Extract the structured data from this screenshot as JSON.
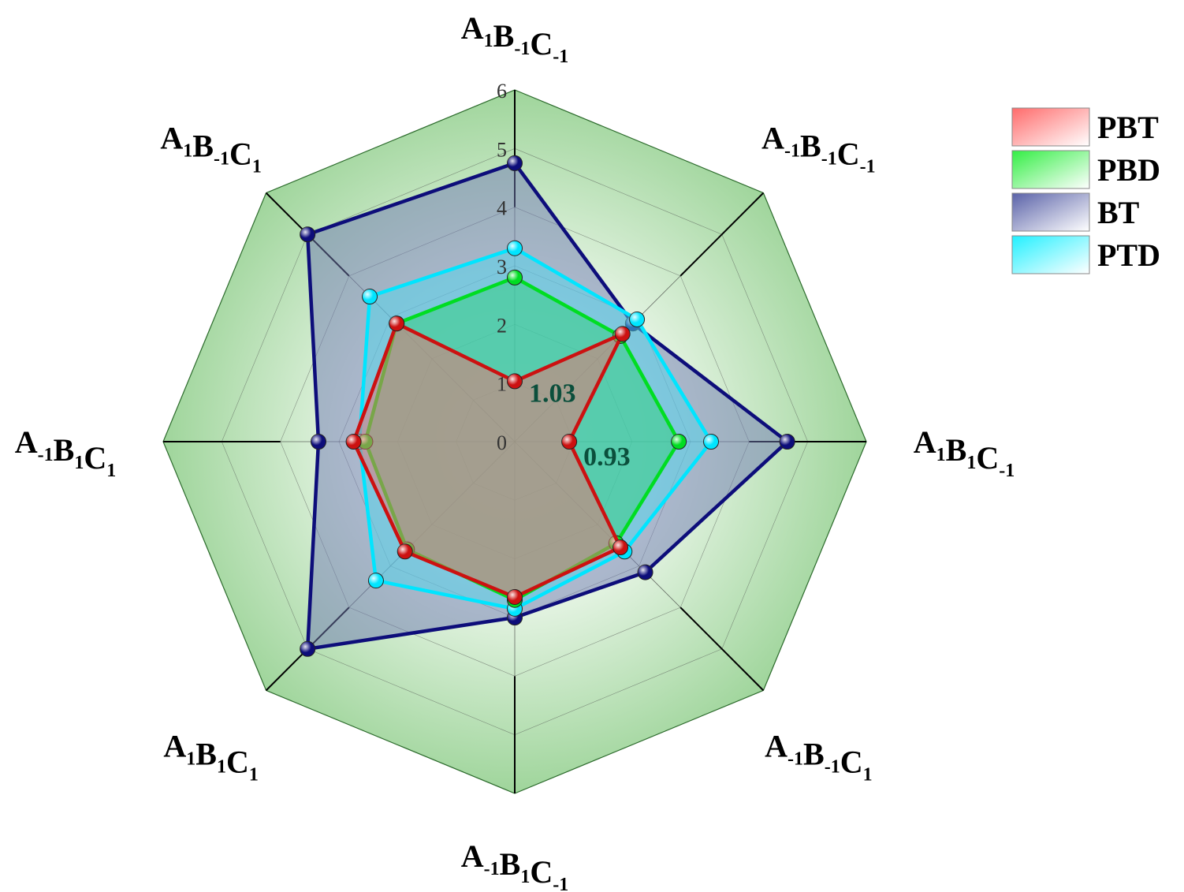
{
  "chart_data": {
    "type": "radar",
    "r_range": [
      0,
      6
    ],
    "r_ticks": [
      0,
      1,
      2,
      3,
      4,
      5,
      6
    ],
    "axes": [
      {
        "parts": [
          {
            "t": "A",
            "s": "1"
          },
          {
            "t": "B",
            "s": "-1"
          },
          {
            "t": "C",
            "s": "-1"
          }
        ]
      },
      {
        "parts": [
          {
            "t": "A",
            "s": "-1"
          },
          {
            "t": "B",
            "s": "-1"
          },
          {
            "t": "C",
            "s": "-1"
          }
        ]
      },
      {
        "parts": [
          {
            "t": "A",
            "s": "1"
          },
          {
            "t": "B",
            "s": "1"
          },
          {
            "t": "C",
            "s": "-1"
          }
        ]
      },
      {
        "parts": [
          {
            "t": "A",
            "s": "-1"
          },
          {
            "t": "B",
            "s": "-1"
          },
          {
            "t": "C",
            "s": "1"
          }
        ]
      },
      {
        "parts": [
          {
            "t": "A",
            "s": "-1"
          },
          {
            "t": "B",
            "s": "1"
          },
          {
            "t": "C",
            "s": "-1"
          }
        ]
      },
      {
        "parts": [
          {
            "t": "A",
            "s": "1"
          },
          {
            "t": "B",
            "s": "1"
          },
          {
            "t": "C",
            "s": "1"
          }
        ]
      },
      {
        "parts": [
          {
            "t": "A",
            "s": "-1"
          },
          {
            "t": "B",
            "s": "1"
          },
          {
            "t": "C",
            "s": "1"
          }
        ]
      },
      {
        "parts": [
          {
            "t": "A",
            "s": "1"
          },
          {
            "t": "B",
            "s": "-1"
          },
          {
            "t": "C",
            "s": "1"
          }
        ]
      }
    ],
    "series": [
      {
        "name": "BT",
        "color": "#0d0d7a",
        "fill": "#6f79b4",
        "values": [
          4.75,
          2.85,
          4.65,
          3.15,
          3.0,
          5.0,
          3.35,
          5.0
        ]
      },
      {
        "name": "PTD",
        "color": "#00e5ff",
        "fill": "#50d8ee",
        "values": [
          3.3,
          2.95,
          3.35,
          2.65,
          2.85,
          3.35,
          2.65,
          3.5
        ]
      },
      {
        "name": "PBD",
        "color": "#00dd22",
        "fill": "#2ecf7a",
        "values": [
          2.8,
          2.55,
          2.8,
          2.45,
          2.7,
          2.6,
          2.55,
          2.85
        ]
      },
      {
        "name": "PBT",
        "color": "#cc1111",
        "fill": "#f07070",
        "values": [
          1.03,
          2.6,
          0.93,
          2.55,
          2.65,
          2.65,
          2.75,
          2.85
        ]
      }
    ],
    "legend_order": [
      "PBT",
      "PBD",
      "BT",
      "PTD"
    ],
    "legend_position": "top-right",
    "annotations": [
      {
        "text": "1.03",
        "series": "PBT",
        "axis_index": 0
      },
      {
        "text": "0.93",
        "series": "PBT",
        "axis_index": 2
      }
    ]
  }
}
